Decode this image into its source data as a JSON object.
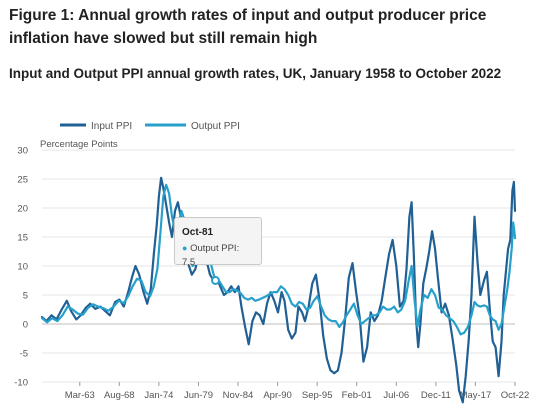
{
  "figure": {
    "title": "Figure 1: Annual growth rates of input and output producer price inflation have slowed but still remain high",
    "subtitle": "Input and Output PPI annual growth rates, UK, January 1958 to October 2022"
  },
  "tooltip": {
    "date": "Oct-81",
    "series_label": "Output PPI",
    "value_text": "7.5"
  },
  "colors": {
    "input": "#206095",
    "output": "#27a0cc",
    "grid": "#e4e4e4",
    "tooltip_bg": "#f4f4f4"
  },
  "chart_data": {
    "type": "line",
    "title": "Input and Output PPI annual growth rates, UK, January 1958 to October 2022",
    "ylabel": "Percentage Points",
    "xlabel": "",
    "ylim": [
      -10,
      30
    ],
    "yticks": [
      30,
      25,
      20,
      15,
      10,
      5,
      0,
      -5,
      -10
    ],
    "x_range": [
      1958.0,
      2022.75
    ],
    "x_ticks": [
      {
        "label": "Mar-63",
        "x": 1963.17
      },
      {
        "label": "Aug-68",
        "x": 1968.58
      },
      {
        "label": "Jan-74",
        "x": 1974.0
      },
      {
        "label": "Jun-79",
        "x": 1979.42
      },
      {
        "label": "Nov-84",
        "x": 1984.83
      },
      {
        "label": "Apr-90",
        "x": 1990.25
      },
      {
        "label": "Sep-95",
        "x": 1995.67
      },
      {
        "label": "Feb-01",
        "x": 2001.08
      },
      {
        "label": "Jul-06",
        "x": 2006.5
      },
      {
        "label": "Dec-11",
        "x": 2011.92
      },
      {
        "label": "May-17",
        "x": 2017.33
      },
      {
        "label": "Oct-22",
        "x": 2022.75
      }
    ],
    "grid": true,
    "legend_position": "top-left",
    "series": [
      {
        "name": "Input PPI",
        "color": "#206095",
        "points": [
          [
            1958.0,
            1.2
          ],
          [
            1958.6,
            0.5
          ],
          [
            1959.3,
            1.5
          ],
          [
            1960.0,
            0.8
          ],
          [
            1960.7,
            2.5
          ],
          [
            1961.4,
            4.0
          ],
          [
            1962.0,
            2.2
          ],
          [
            1962.7,
            0.8
          ],
          [
            1963.3,
            1.5
          ],
          [
            1964.0,
            2.8
          ],
          [
            1964.6,
            3.5
          ],
          [
            1965.3,
            2.6
          ],
          [
            1966.0,
            3.0
          ],
          [
            1966.6,
            2.3
          ],
          [
            1967.3,
            1.5
          ],
          [
            1968.0,
            3.8
          ],
          [
            1968.6,
            4.2
          ],
          [
            1969.2,
            3.0
          ],
          [
            1969.8,
            5.5
          ],
          [
            1970.3,
            8.0
          ],
          [
            1970.8,
            10.0
          ],
          [
            1971.3,
            8.5
          ],
          [
            1971.9,
            5.5
          ],
          [
            1972.4,
            3.5
          ],
          [
            1972.9,
            6.0
          ],
          [
            1973.3,
            12.0
          ],
          [
            1973.7,
            17.0
          ],
          [
            1974.0,
            22.0
          ],
          [
            1974.3,
            25.2
          ],
          [
            1974.6,
            23.5
          ],
          [
            1975.0,
            20.5
          ],
          [
            1975.4,
            17.5
          ],
          [
            1975.8,
            15.0
          ],
          [
            1976.2,
            19.5
          ],
          [
            1976.6,
            21.0
          ],
          [
            1977.0,
            18.5
          ],
          [
            1977.5,
            14.5
          ],
          [
            1978.0,
            10.5
          ],
          [
            1978.5,
            8.5
          ],
          [
            1979.0,
            9.5
          ],
          [
            1979.5,
            12.5
          ],
          [
            1980.0,
            13.0
          ],
          [
            1980.5,
            11.0
          ],
          [
            1981.0,
            8.5
          ],
          [
            1981.5,
            7.5
          ],
          [
            1981.9,
            8.0
          ],
          [
            1982.4,
            6.5
          ],
          [
            1982.9,
            5.0
          ],
          [
            1983.4,
            5.5
          ],
          [
            1983.9,
            6.5
          ],
          [
            1984.4,
            5.5
          ],
          [
            1984.9,
            6.5
          ],
          [
            1985.3,
            3.0
          ],
          [
            1985.8,
            -0.5
          ],
          [
            1986.3,
            -3.5
          ],
          [
            1986.8,
            0.5
          ],
          [
            1987.3,
            2.0
          ],
          [
            1987.8,
            1.5
          ],
          [
            1988.3,
            0.0
          ],
          [
            1988.8,
            3.5
          ],
          [
            1989.3,
            5.5
          ],
          [
            1989.8,
            4.0
          ],
          [
            1990.3,
            2.0
          ],
          [
            1990.8,
            5.5
          ],
          [
            1991.2,
            4.0
          ],
          [
            1991.7,
            -1.0
          ],
          [
            1992.2,
            -2.5
          ],
          [
            1992.7,
            -1.5
          ],
          [
            1993.1,
            3.0
          ],
          [
            1993.6,
            2.0
          ],
          [
            1994.0,
            0.5
          ],
          [
            1994.5,
            3.0
          ],
          [
            1995.0,
            7.0
          ],
          [
            1995.5,
            8.5
          ],
          [
            1996.0,
            4.0
          ],
          [
            1996.5,
            -2.0
          ],
          [
            1997.0,
            -6.0
          ],
          [
            1997.5,
            -8.0
          ],
          [
            1998.0,
            -8.5
          ],
          [
            1998.5,
            -8.0
          ],
          [
            1999.0,
            -5.0
          ],
          [
            1999.5,
            1.0
          ],
          [
            2000.0,
            8.0
          ],
          [
            2000.5,
            10.5
          ],
          [
            2001.0,
            5.5
          ],
          [
            2001.5,
            1.0
          ],
          [
            2002.0,
            -6.5
          ],
          [
            2002.5,
            -4.0
          ],
          [
            2003.0,
            2.0
          ],
          [
            2003.5,
            0.5
          ],
          [
            2004.0,
            1.5
          ],
          [
            2004.5,
            4.0
          ],
          [
            2005.0,
            8.0
          ],
          [
            2005.5,
            12.0
          ],
          [
            2006.0,
            14.5
          ],
          [
            2006.5,
            10.0
          ],
          [
            2007.0,
            3.0
          ],
          [
            2007.5,
            4.0
          ],
          [
            2007.9,
            9.5
          ],
          [
            2008.3,
            18.5
          ],
          [
            2008.6,
            21.0
          ],
          [
            2008.9,
            12.0
          ],
          [
            2009.2,
            1.0
          ],
          [
            2009.5,
            -4.0
          ],
          [
            2009.8,
            0.0
          ],
          [
            2010.2,
            7.0
          ],
          [
            2010.6,
            9.5
          ],
          [
            2011.0,
            12.5
          ],
          [
            2011.4,
            16.0
          ],
          [
            2011.8,
            13.0
          ],
          [
            2012.2,
            8.0
          ],
          [
            2012.7,
            2.0
          ],
          [
            2013.2,
            3.5
          ],
          [
            2013.7,
            1.5
          ],
          [
            2014.2,
            -2.5
          ],
          [
            2014.7,
            -7.0
          ],
          [
            2015.1,
            -11.5
          ],
          [
            2015.6,
            -13.5
          ],
          [
            2016.0,
            -9.0
          ],
          [
            2016.4,
            -3.0
          ],
          [
            2016.8,
            5.0
          ],
          [
            2017.2,
            18.5
          ],
          [
            2017.6,
            11.0
          ],
          [
            2018.0,
            5.0
          ],
          [
            2018.5,
            7.5
          ],
          [
            2018.9,
            9.0
          ],
          [
            2019.3,
            2.5
          ],
          [
            2019.7,
            -3.0
          ],
          [
            2020.1,
            -4.0
          ],
          [
            2020.5,
            -9.0
          ],
          [
            2020.9,
            -3.0
          ],
          [
            2021.2,
            5.0
          ],
          [
            2021.5,
            9.0
          ],
          [
            2021.8,
            13.0
          ],
          [
            2022.1,
            14.5
          ],
          [
            2022.4,
            23.0
          ],
          [
            2022.6,
            24.5
          ],
          [
            2022.75,
            19.5
          ]
        ]
      },
      {
        "name": "Output PPI",
        "color": "#27a0cc",
        "points": [
          [
            1958.0,
            1.0
          ],
          [
            1958.7,
            0.3
          ],
          [
            1959.4,
            1.0
          ],
          [
            1960.1,
            0.5
          ],
          [
            1960.8,
            1.5
          ],
          [
            1961.5,
            3.0
          ],
          [
            1962.2,
            2.5
          ],
          [
            1962.9,
            1.8
          ],
          [
            1963.6,
            1.6
          ],
          [
            1964.3,
            2.8
          ],
          [
            1965.0,
            3.4
          ],
          [
            1965.7,
            3.0
          ],
          [
            1966.4,
            2.7
          ],
          [
            1967.1,
            2.3
          ],
          [
            1967.8,
            3.0
          ],
          [
            1968.5,
            4.0
          ],
          [
            1969.2,
            3.6
          ],
          [
            1969.8,
            4.8
          ],
          [
            1970.4,
            6.5
          ],
          [
            1971.0,
            7.8
          ],
          [
            1971.6,
            7.5
          ],
          [
            1972.2,
            5.5
          ],
          [
            1972.8,
            4.8
          ],
          [
            1973.3,
            6.5
          ],
          [
            1973.8,
            9.5
          ],
          [
            1974.2,
            15.5
          ],
          [
            1974.6,
            22.0
          ],
          [
            1975.0,
            24.0
          ],
          [
            1975.4,
            22.5
          ],
          [
            1975.8,
            18.5
          ],
          [
            1976.2,
            16.0
          ],
          [
            1976.7,
            17.5
          ],
          [
            1977.1,
            19.5
          ],
          [
            1977.6,
            17.5
          ],
          [
            1978.1,
            13.0
          ],
          [
            1978.6,
            10.0
          ],
          [
            1979.1,
            10.5
          ],
          [
            1979.6,
            12.5
          ],
          [
            1980.1,
            14.5
          ],
          [
            1980.6,
            13.0
          ],
          [
            1981.1,
            10.5
          ],
          [
            1981.5,
            8.5
          ],
          [
            1981.8,
            7.5
          ],
          [
            1982.2,
            7.5
          ],
          [
            1982.7,
            6.5
          ],
          [
            1983.2,
            5.5
          ],
          [
            1983.7,
            5.5
          ],
          [
            1984.2,
            6.0
          ],
          [
            1984.7,
            5.8
          ],
          [
            1985.2,
            5.3
          ],
          [
            1985.7,
            4.5
          ],
          [
            1986.2,
            4.2
          ],
          [
            1986.7,
            4.5
          ],
          [
            1987.2,
            4.0
          ],
          [
            1987.7,
            4.2
          ],
          [
            1988.2,
            4.5
          ],
          [
            1988.7,
            4.8
          ],
          [
            1989.2,
            5.2
          ],
          [
            1989.7,
            5.5
          ],
          [
            1990.2,
            5.5
          ],
          [
            1990.7,
            6.5
          ],
          [
            1991.2,
            6.0
          ],
          [
            1991.7,
            5.0
          ],
          [
            1992.2,
            3.5
          ],
          [
            1992.7,
            3.0
          ],
          [
            1993.2,
            3.8
          ],
          [
            1993.7,
            3.5
          ],
          [
            1994.2,
            2.5
          ],
          [
            1994.7,
            2.8
          ],
          [
            1995.2,
            4.0
          ],
          [
            1995.7,
            4.8
          ],
          [
            1996.2,
            3.0
          ],
          [
            1996.7,
            1.5
          ],
          [
            1997.2,
            0.8
          ],
          [
            1997.7,
            0.5
          ],
          [
            1998.2,
            0.5
          ],
          [
            1998.7,
            -0.5
          ],
          [
            1999.2,
            0.3
          ],
          [
            1999.7,
            1.5
          ],
          [
            2000.2,
            2.5
          ],
          [
            2000.7,
            3.5
          ],
          [
            2001.2,
            1.5
          ],
          [
            2001.7,
            0.0
          ],
          [
            2002.2,
            0.5
          ],
          [
            2002.7,
            1.0
          ],
          [
            2003.2,
            1.5
          ],
          [
            2003.7,
            1.5
          ],
          [
            2004.2,
            2.0
          ],
          [
            2004.7,
            3.0
          ],
          [
            2005.2,
            2.5
          ],
          [
            2005.7,
            2.5
          ],
          [
            2006.2,
            3.0
          ],
          [
            2006.7,
            2.0
          ],
          [
            2007.2,
            2.5
          ],
          [
            2007.7,
            4.0
          ],
          [
            2008.2,
            7.5
          ],
          [
            2008.6,
            10.0
          ],
          [
            2009.0,
            4.0
          ],
          [
            2009.4,
            -0.5
          ],
          [
            2009.8,
            2.5
          ],
          [
            2010.3,
            5.0
          ],
          [
            2010.8,
            4.5
          ],
          [
            2011.3,
            6.0
          ],
          [
            2011.8,
            5.0
          ],
          [
            2012.3,
            2.8
          ],
          [
            2012.8,
            2.5
          ],
          [
            2013.3,
            1.5
          ],
          [
            2013.8,
            1.0
          ],
          [
            2014.3,
            0.5
          ],
          [
            2014.8,
            -0.5
          ],
          [
            2015.3,
            -1.8
          ],
          [
            2015.8,
            -1.5
          ],
          [
            2016.3,
            -0.5
          ],
          [
            2016.8,
            1.5
          ],
          [
            2017.2,
            3.8
          ],
          [
            2017.6,
            3.2
          ],
          [
            2018.0,
            3.0
          ],
          [
            2018.5,
            3.2
          ],
          [
            2018.9,
            3.0
          ],
          [
            2019.3,
            1.5
          ],
          [
            2019.7,
            0.8
          ],
          [
            2020.1,
            0.5
          ],
          [
            2020.5,
            -1.0
          ],
          [
            2020.9,
            0.0
          ],
          [
            2021.3,
            3.0
          ],
          [
            2021.7,
            6.0
          ],
          [
            2022.0,
            9.0
          ],
          [
            2022.3,
            13.0
          ],
          [
            2022.5,
            17.5
          ],
          [
            2022.65,
            16.0
          ],
          [
            2022.75,
            14.8
          ]
        ]
      }
    ]
  }
}
